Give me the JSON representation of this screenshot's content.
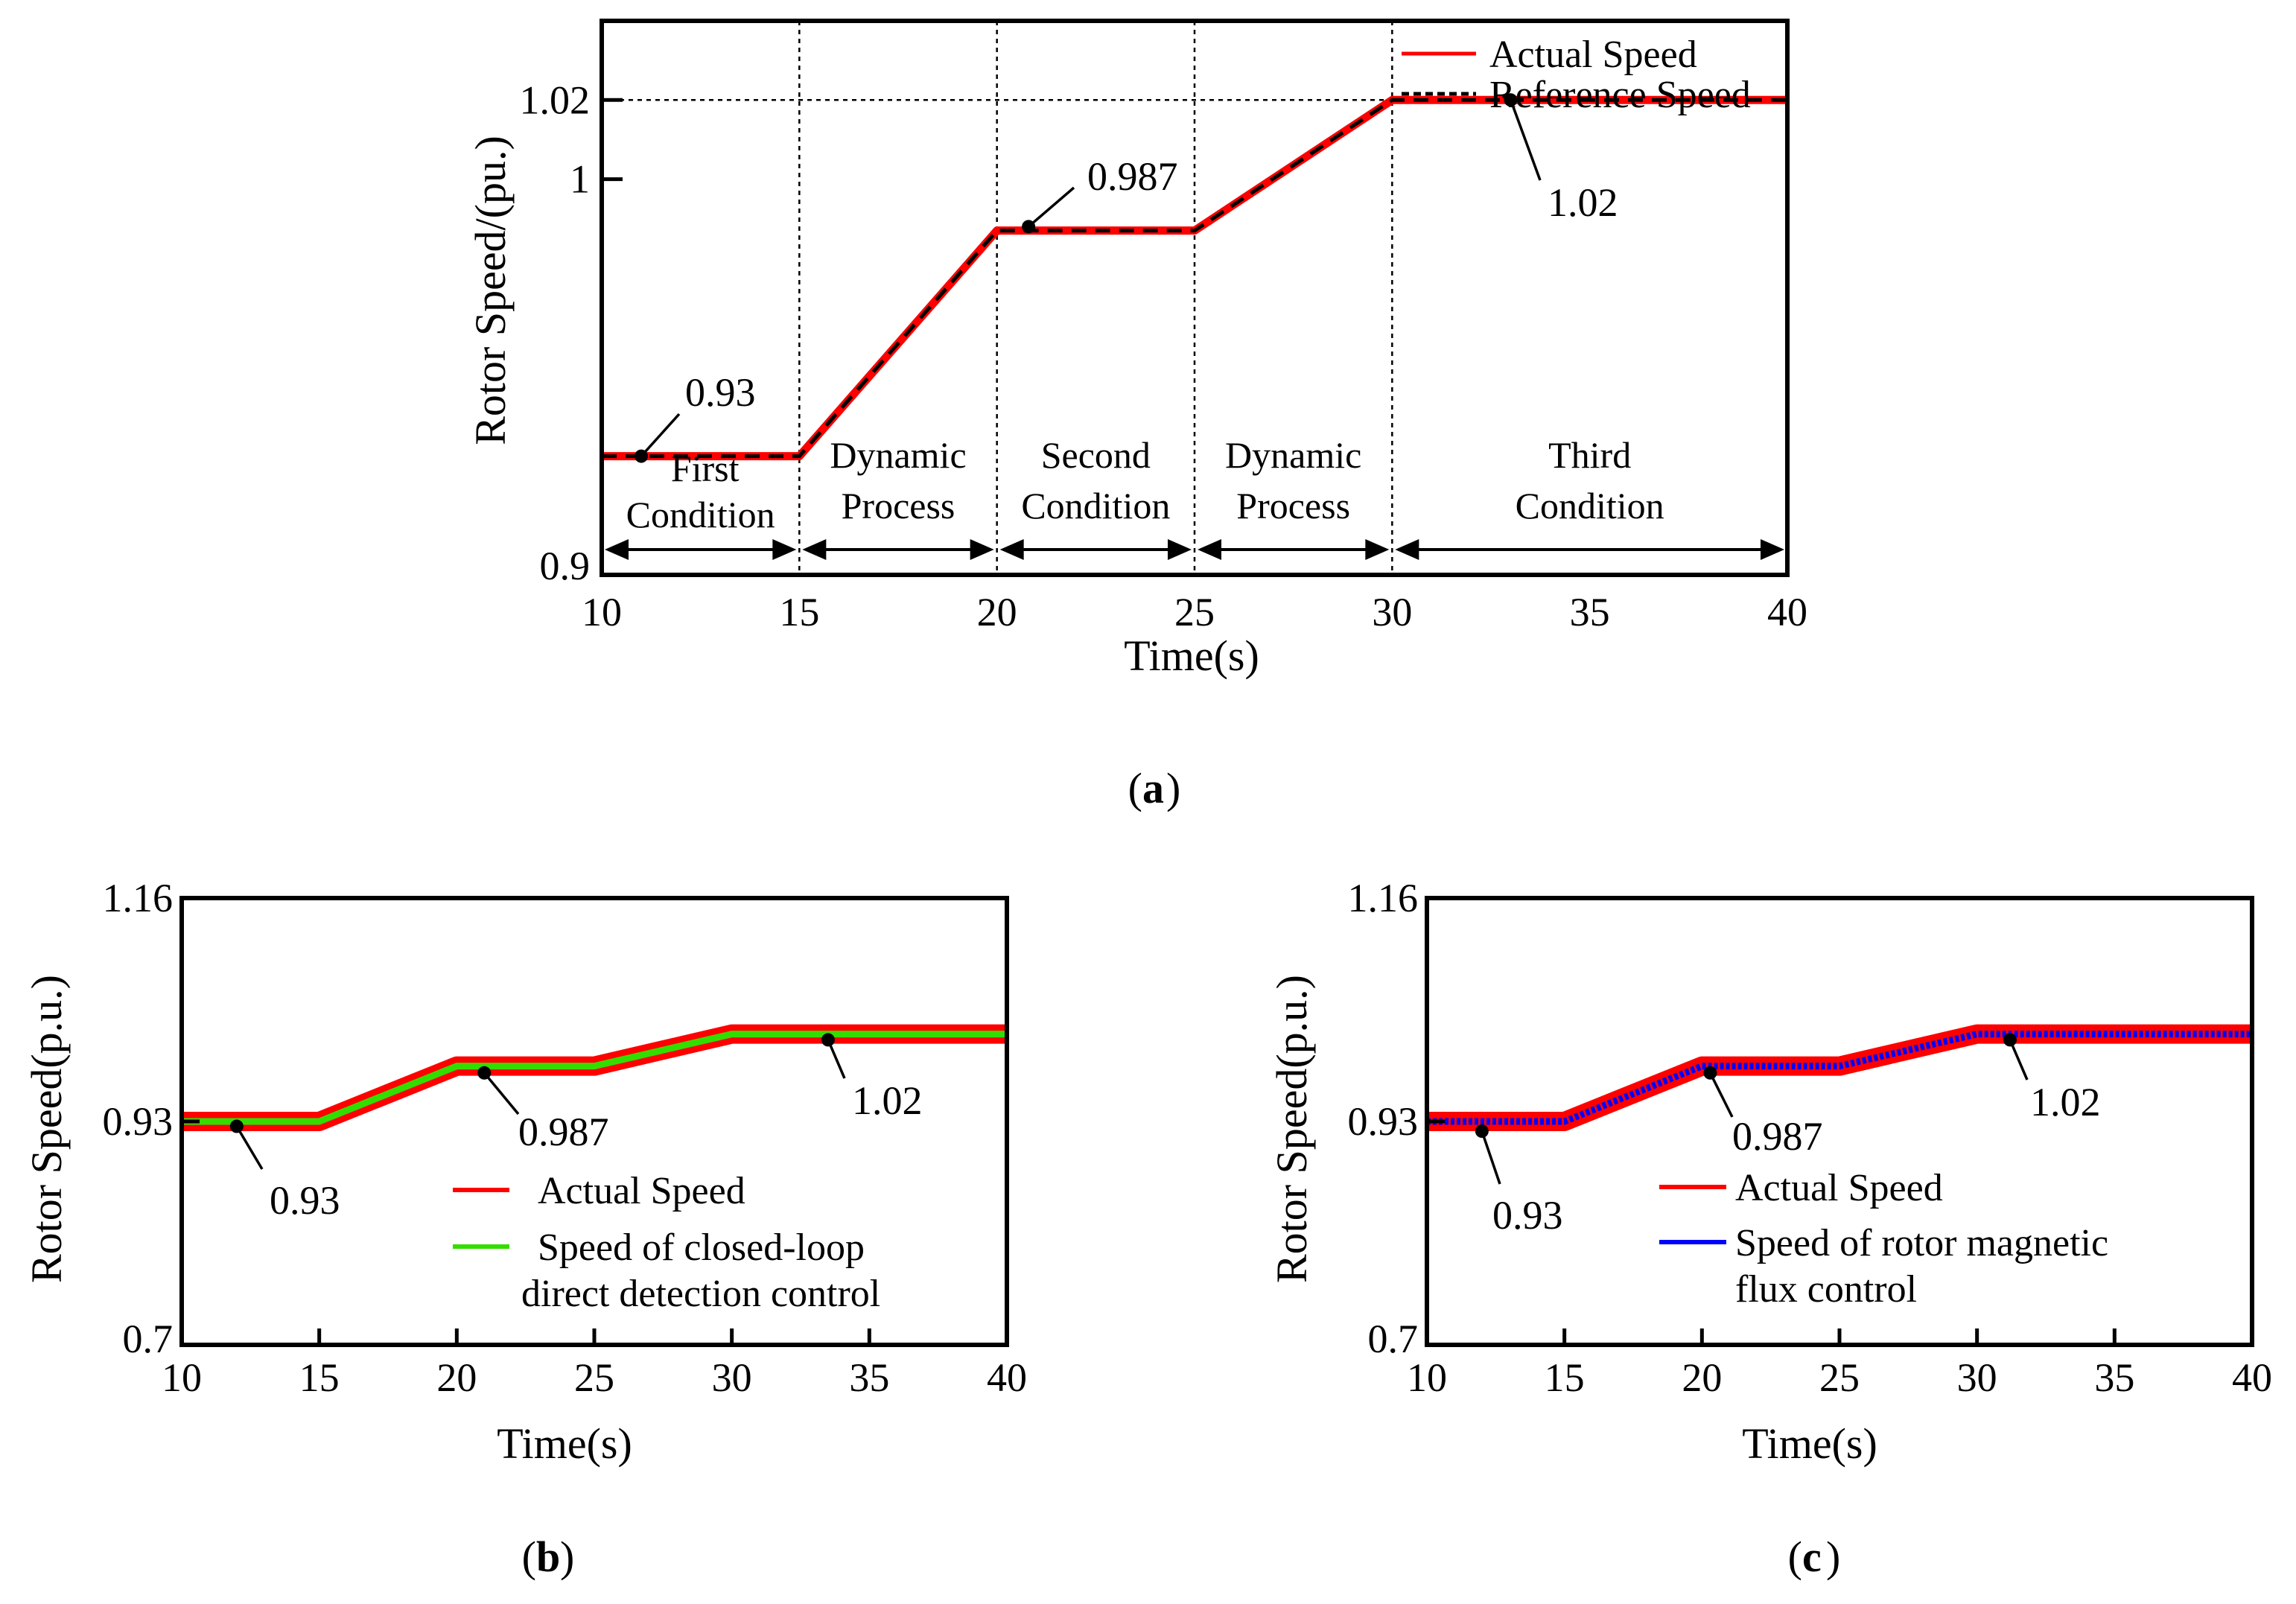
{
  "chart_data": [
    {
      "id": "a",
      "type": "line",
      "panel_label": "a",
      "xlabel": "Time(s)",
      "ylabel": "Rotor Speed/(pu.)",
      "xlim": [
        10,
        40
      ],
      "ylim": [
        0.9,
        1.04
      ],
      "x_ticks": [
        "10",
        "15",
        "20",
        "25",
        "30",
        "35",
        "40"
      ],
      "y_ticks": [
        {
          "value": 0.9,
          "label": "0.9"
        },
        {
          "value": 1.0,
          "label": "1"
        },
        {
          "value": 1.02,
          "label": "1.02"
        }
      ],
      "series": [
        {
          "name": "Actual Speed",
          "color": "#ff0000",
          "style": "solid",
          "x": [
            10,
            15,
            20,
            25,
            30,
            40
          ],
          "y": [
            0.93,
            0.93,
            0.987,
            0.987,
            1.02,
            1.02
          ]
        },
        {
          "name": "Reference Speed",
          "color": "#000000",
          "style": "dashed",
          "x": [
            10,
            15,
            20,
            25,
            30,
            40
          ],
          "y": [
            0.93,
            0.93,
            0.987,
            0.987,
            1.02,
            1.02
          ]
        }
      ],
      "annotations": [
        {
          "label": "0.93",
          "x": 11,
          "y": 0.93
        },
        {
          "label": "0.987",
          "x": 20.8,
          "y": 0.988
        },
        {
          "label": "1.02",
          "x": 33,
          "y": 1.02
        }
      ],
      "regions": [
        {
          "line1": "First",
          "line2": "Condition",
          "from": 10,
          "to": 15
        },
        {
          "line1": "Dynamic",
          "line2": "Process",
          "from": 15,
          "to": 20
        },
        {
          "line1": "Second",
          "line2": "Condition",
          "from": 20,
          "to": 25
        },
        {
          "line1": "Dynamic",
          "line2": "Process",
          "from": 25,
          "to": 30
        },
        {
          "line1": "Third",
          "line2": "Condition",
          "from": 30,
          "to": 40
        }
      ],
      "legend": [
        "Actual Speed",
        "Reference Speed"
      ]
    },
    {
      "id": "b",
      "type": "line",
      "panel_label": "b",
      "xlabel": "Time(s)",
      "ylabel": "Rotor Speed(p.u.)",
      "xlim": [
        10,
        40
      ],
      "ylim": [
        0.7,
        1.16
      ],
      "x_ticks": [
        "10",
        "15",
        "20",
        "25",
        "30",
        "35",
        "40"
      ],
      "y_ticks": [
        {
          "value": 0.7,
          "label": "0.7"
        },
        {
          "value": 0.93,
          "label": "0.93"
        },
        {
          "value": 1.16,
          "label": "1.16"
        }
      ],
      "series": [
        {
          "name": "Actual Speed",
          "color": "#ff0000",
          "style": "solid",
          "x": [
            10,
            15,
            20,
            25,
            30,
            40
          ],
          "y": [
            0.93,
            0.93,
            0.987,
            0.987,
            1.02,
            1.02
          ]
        },
        {
          "name": "Speed of closed-loop direct detection control",
          "color": "#33dd00",
          "style": "solid",
          "x": [
            10,
            15,
            20,
            25,
            30,
            40
          ],
          "y": [
            0.93,
            0.93,
            0.987,
            0.987,
            1.02,
            1.02
          ]
        }
      ],
      "annotations": [
        {
          "label": "0.93",
          "x": 12,
          "y": 0.925
        },
        {
          "label": "0.987",
          "x": 21,
          "y": 0.98
        },
        {
          "label": "1.02",
          "x": 33.5,
          "y": 1.014
        }
      ],
      "legend": [
        "Actual Speed",
        "Speed of closed-loop",
        "direct detection control"
      ]
    },
    {
      "id": "c",
      "type": "line",
      "panel_label": "c",
      "xlabel": "Time(s)",
      "ylabel": "Rotor Speed(p.u.)",
      "xlim": [
        10,
        40
      ],
      "ylim": [
        0.7,
        1.16
      ],
      "x_ticks": [
        "10",
        "15",
        "20",
        "25",
        "30",
        "35",
        "40"
      ],
      "y_ticks": [
        {
          "value": 0.7,
          "label": "0.7"
        },
        {
          "value": 0.93,
          "label": "0.93"
        },
        {
          "value": 1.16,
          "label": "1.16"
        }
      ],
      "series": [
        {
          "name": "Actual Speed",
          "color": "#ff0000",
          "style": "solid",
          "x": [
            10,
            15,
            20,
            25,
            30,
            40
          ],
          "y": [
            0.93,
            0.93,
            0.987,
            0.987,
            1.02,
            1.02
          ]
        },
        {
          "name": "Speed of rotor magnetic flux control",
          "color": "#0000ff",
          "style": "solid",
          "x": [
            10,
            15,
            20,
            25,
            30,
            40
          ],
          "y": [
            0.93,
            0.93,
            0.987,
            0.987,
            1.02,
            1.02
          ]
        }
      ],
      "annotations": [
        {
          "label": "0.93",
          "x": 12,
          "y": 0.92
        },
        {
          "label": "0.987",
          "x": 20.3,
          "y": 0.98
        },
        {
          "label": "1.02",
          "x": 31.2,
          "y": 1.014
        }
      ],
      "legend": [
        "Actual Speed",
        "Speed of rotor magnetic",
        "flux control"
      ]
    }
  ]
}
